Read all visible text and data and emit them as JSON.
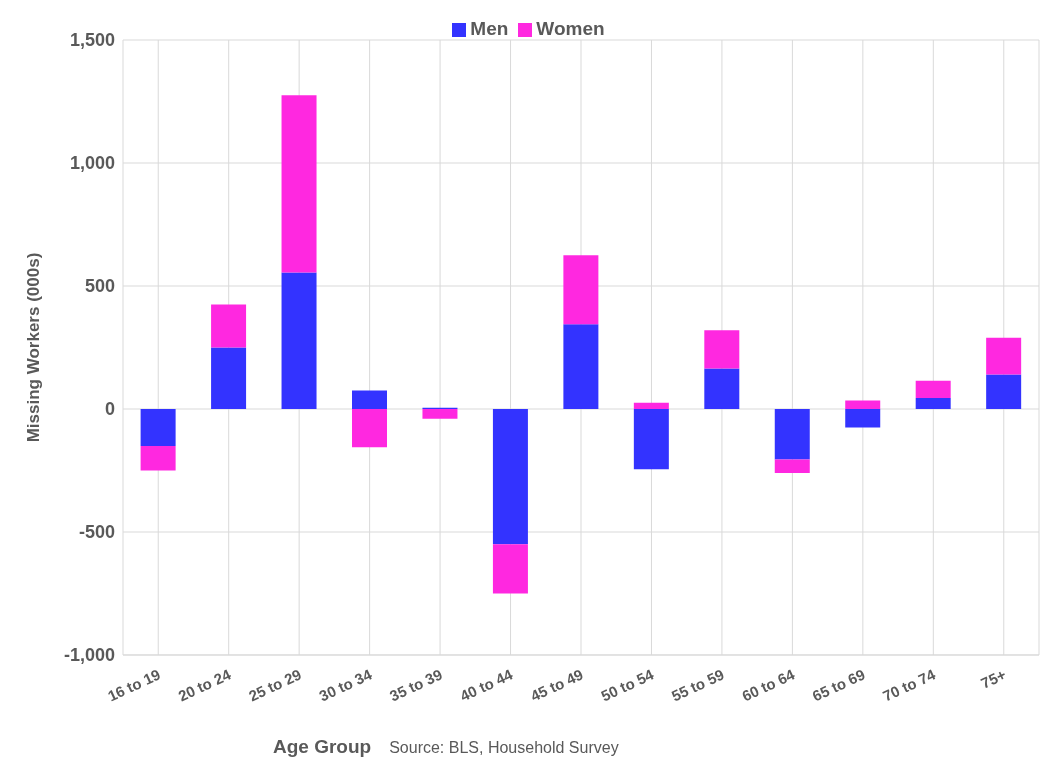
{
  "chart_data": {
    "type": "bar",
    "stacked": true,
    "xlabel": "Age Group",
    "ylabel": "Missing Workers (000s)",
    "annotations": [
      "Source: BLS, Household Survey"
    ],
    "categories": [
      "16 to 19",
      "20 to 24",
      "25 to 29",
      "30 to 34",
      "35 to 39",
      "40 to 44",
      "45 to 49",
      "50 to 54",
      "55 to 59",
      "60 to 64",
      "65 to 69",
      "70 to 74",
      "75+"
    ],
    "series": [
      {
        "name": "Men",
        "color": "#3333ff",
        "values": [
          -150,
          250,
          555,
          75,
          5,
          -550,
          345,
          -245,
          165,
          -205,
          -75,
          45,
          140
        ]
      },
      {
        "name": "Women",
        "color": "#ff28e0",
        "values": [
          -100,
          175,
          720,
          -155,
          -40,
          -200,
          280,
          25,
          155,
          -55,
          35,
          70,
          150
        ]
      }
    ],
    "ylim": [
      -1000,
      1500
    ],
    "yticks": [
      {
        "value": -1000,
        "label": "-1,000"
      },
      -500,
      0,
      500,
      {
        "value": 1000,
        "label": "1,000"
      },
      {
        "value": 1500,
        "label": "1,500"
      }
    ],
    "grid": true,
    "legend": "top"
  }
}
